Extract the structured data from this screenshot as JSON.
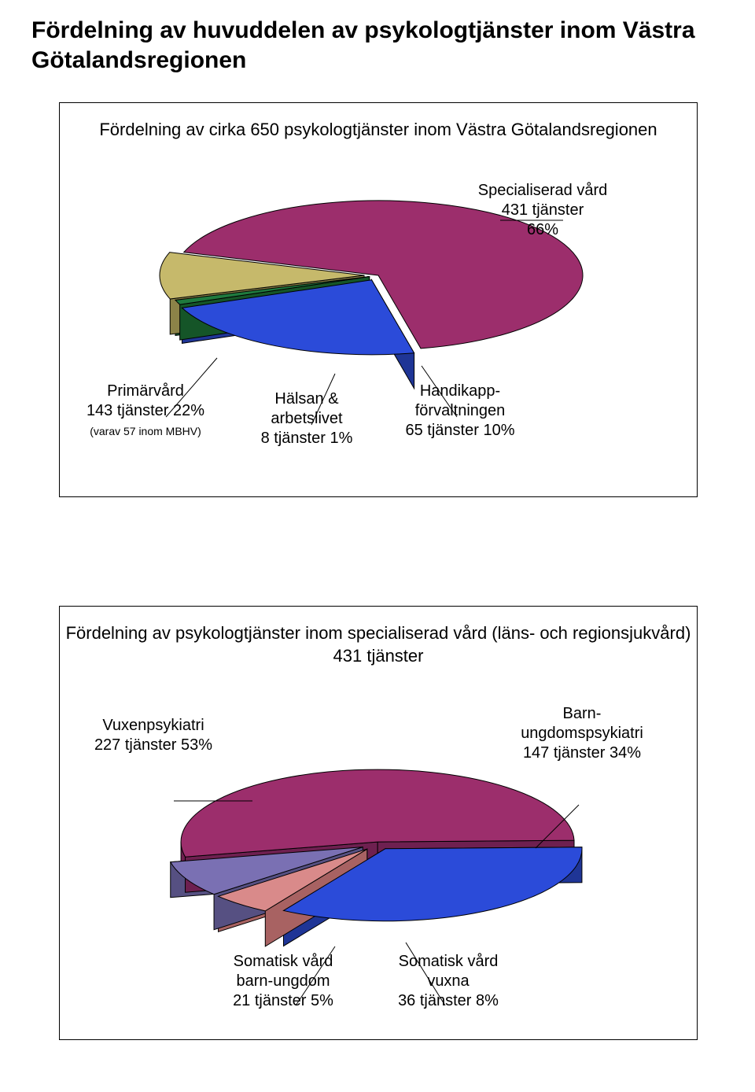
{
  "page_title": "Fördelning av huvuddelen av psykologtjänster  inom Västra Götalandsregionen",
  "chart1": {
    "type": "3d-pie",
    "title": "Fördelning av cirka 650 psykologtjänster inom Västra Götalandsregionen",
    "background": "#ffffff",
    "depth": 45,
    "slices": [
      {
        "label_lines": [
          "Specialiserad vård",
          "431 tjänster",
          "66%"
        ],
        "value": 66,
        "fill": "#9c2e6c",
        "side": "#6e2050",
        "explode": 0
      },
      {
        "label_lines": [
          "Primärvård",
          "143 tjänster 22%"
        ],
        "sublabel": "(varav 57 inom MBHV)",
        "value": 22,
        "fill": "#2b4bd9",
        "side": "#1f3596",
        "explode": 18
      },
      {
        "label_lines": [
          "Hälsan &",
          "arbetslivet",
          "8 tjänster 1%"
        ],
        "value": 1,
        "fill": "#1f7a3e",
        "side": "#155528",
        "explode": 12
      },
      {
        "label_lines": [
          "Handikapp-",
          "förvaltningen",
          "65 tjänster 10%"
        ],
        "value": 10,
        "fill": "#c6b96b",
        "side": "#8c8348",
        "explode": 18
      }
    ]
  },
  "chart2": {
    "type": "3d-pie",
    "title": "Fördelning av psykologtjänster inom specialiserad vård (läns- och regionsjukvård) 431 tjänster",
    "background": "#ffffff",
    "depth": 45,
    "slices": [
      {
        "label_lines": [
          "Vuxenpsykiatri",
          "227 tjänster 53%"
        ],
        "value": 53,
        "fill": "#9c2e6c",
        "side": "#6e2050",
        "explode": 8
      },
      {
        "label_lines": [
          "Barn-",
          "ungdomspsykiatri",
          "147 tjänster 34%"
        ],
        "value": 34,
        "fill": "#2b4bd9",
        "side": "#1f3596",
        "explode": 18
      },
      {
        "label_lines": [
          "Somatisk vård",
          "barn-ungdom",
          "21 tjänster 5%"
        ],
        "value": 5,
        "fill": "#d98a8a",
        "side": "#a86262",
        "explode": 22
      },
      {
        "label_lines": [
          "Somatisk vård",
          "vuxna",
          "36 tjänster 8%"
        ],
        "value": 8,
        "fill": "#7a70b3",
        "side": "#565082",
        "explode": 22
      }
    ]
  }
}
